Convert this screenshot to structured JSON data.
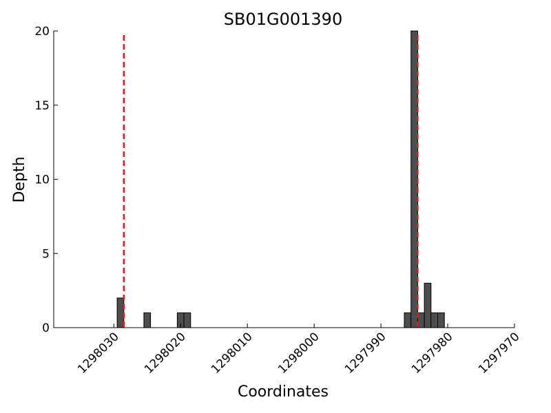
{
  "chart_data": {
    "type": "bar",
    "title": "SB01G001390",
    "xlabel": "Coordinates",
    "ylabel": "Depth",
    "x_axis_reversed": true,
    "xlim": [
      1298039,
      1297970
    ],
    "ylim": [
      0,
      20
    ],
    "x_ticks": [
      1298030,
      1298020,
      1298010,
      1298000,
      1297990,
      1297980,
      1297970
    ],
    "x_tick_labels": [
      "1298030",
      "1298020",
      "1298010",
      "1298000",
      "1297990",
      "1297980",
      "1297970"
    ],
    "y_ticks": [
      0,
      5,
      10,
      15,
      20
    ],
    "y_tick_labels": [
      "0",
      "5",
      "10",
      "15",
      "20"
    ],
    "bar_width": 1,
    "bar_color": "#4d4d4d",
    "grid": false,
    "legend": "none",
    "bars": [
      {
        "x": 1298029,
        "value": 2
      },
      {
        "x": 1298025,
        "value": 1
      },
      {
        "x": 1298020,
        "value": 1
      },
      {
        "x": 1298019,
        "value": 1
      },
      {
        "x": 1297986,
        "value": 1
      },
      {
        "x": 1297985,
        "value": 20
      },
      {
        "x": 1297984,
        "value": 1
      },
      {
        "x": 1297983,
        "value": 3
      },
      {
        "x": 1297982,
        "value": 1
      },
      {
        "x": 1297981,
        "value": 1
      }
    ],
    "reference_lines": [
      {
        "x": 1298028.5,
        "color": "#e31a1c",
        "style": "dashed"
      },
      {
        "x": 1297984.5,
        "color": "#e31a1c",
        "style": "dashed"
      }
    ]
  }
}
